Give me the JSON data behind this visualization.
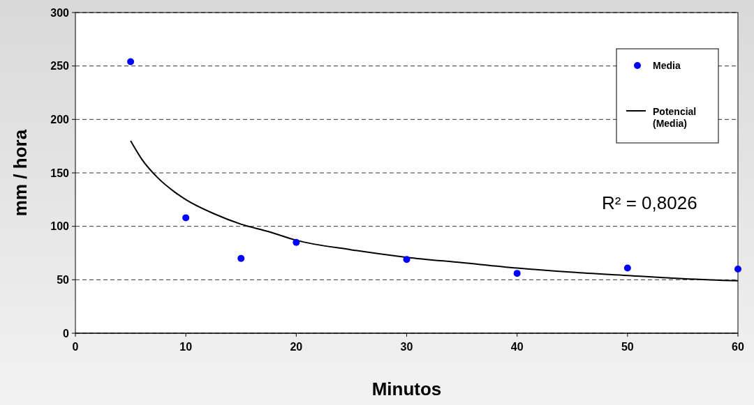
{
  "chart_data": {
    "type": "scatter",
    "xlabel": "Minutos",
    "ylabel": "mm / hora",
    "xlim": [
      0,
      60
    ],
    "xticks": [
      0,
      10,
      20,
      30,
      40,
      50,
      60
    ],
    "ylim": [
      0,
      300
    ],
    "yticks": [
      0,
      50,
      100,
      150,
      200,
      250,
      300
    ],
    "grid": "y",
    "legend": "top right",
    "annotations": [
      "R² = 0,8026"
    ],
    "series": [
      {
        "name": "Media",
        "marker": "circle",
        "color": "#0000ff",
        "x": [
          5,
          10,
          15,
          20,
          30,
          40,
          50,
          60
        ],
        "values": [
          254,
          108,
          70,
          85,
          69,
          56,
          61,
          60
        ]
      },
      {
        "name": "Potencial (Media)",
        "type": "line",
        "color": "#000000",
        "line_style": "solid",
        "marker": "none",
        "x": [
          5,
          6,
          7.5,
          9,
          10,
          12.5,
          15,
          17.5,
          20,
          25,
          30,
          35,
          40,
          45,
          50,
          55,
          60
        ],
        "values": [
          180,
          163,
          145,
          132,
          125,
          112,
          102,
          95,
          87,
          78,
          71,
          66,
          61,
          57,
          54,
          51,
          49
        ]
      }
    ]
  }
}
